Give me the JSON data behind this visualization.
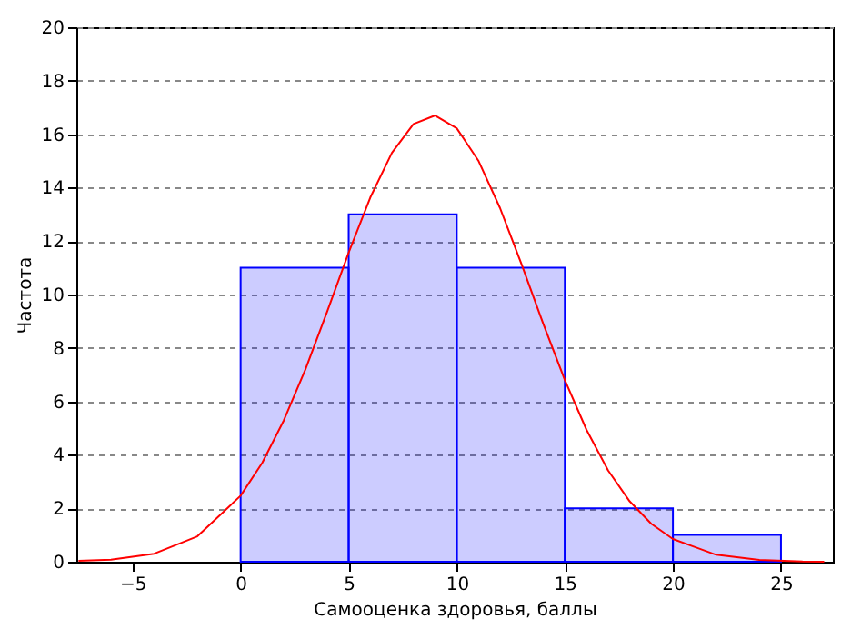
{
  "chart_data": {
    "type": "histogram",
    "xlabel": "Самооценка здоровья, баллы",
    "ylabel": "Частота",
    "bins": [
      0,
      5,
      10,
      15,
      20,
      25
    ],
    "values": [
      11,
      13,
      11,
      2,
      1
    ],
    "color": "#0000ff",
    "series": [
      {
        "type": "line",
        "color": "#ff0000",
        "x": [
          -7.5,
          -6,
          -4,
          -2,
          0,
          1,
          2,
          3,
          4,
          5,
          6,
          7,
          8,
          9,
          10,
          11,
          12,
          13,
          14,
          15,
          16,
          17,
          18,
          19,
          20,
          22,
          24,
          26,
          27
        ],
        "values": [
          0.03,
          0.08,
          0.3,
          0.95,
          2.47,
          3.7,
          5.29,
          7.2,
          9.35,
          11.57,
          13.63,
          15.3,
          16.38,
          16.7,
          16.22,
          15.01,
          13.24,
          11.13,
          8.91,
          6.8,
          4.94,
          3.42,
          2.26,
          1.42,
          0.85,
          0.26,
          0.07,
          0.01,
          0
        ]
      }
    ],
    "xlim": [
      -7.6,
      27.4
    ],
    "ylim": [
      0,
      20
    ],
    "xticks": [
      -5,
      0,
      5,
      10,
      15,
      20,
      25
    ],
    "yticks": [
      0,
      2,
      4,
      6,
      8,
      10,
      12,
      14,
      16,
      18,
      20
    ],
    "grid": "y"
  }
}
